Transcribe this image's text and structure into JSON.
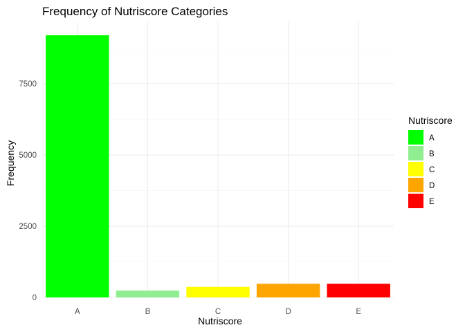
{
  "chart_data": {
    "type": "bar",
    "title": "Frequency of Nutriscore Categories",
    "xlabel": "Nutriscore",
    "ylabel": "Frequency",
    "categories": [
      "A",
      "B",
      "C",
      "D",
      "E"
    ],
    "values": [
      9200,
      240,
      370,
      480,
      480
    ],
    "colors": [
      "#00FF00",
      "#90EE90",
      "#FFFF00",
      "#FFA500",
      "#FF0000"
    ],
    "ylim": [
      0,
      9660
    ],
    "yticks": [
      0,
      2500,
      5000,
      7500
    ],
    "ytick_labels": [
      "0",
      "2500",
      "5000",
      "7500"
    ],
    "grid": true,
    "legend": {
      "title": "Nutriscore",
      "position": "right",
      "entries": [
        "A",
        "B",
        "C",
        "D",
        "E"
      ]
    }
  }
}
